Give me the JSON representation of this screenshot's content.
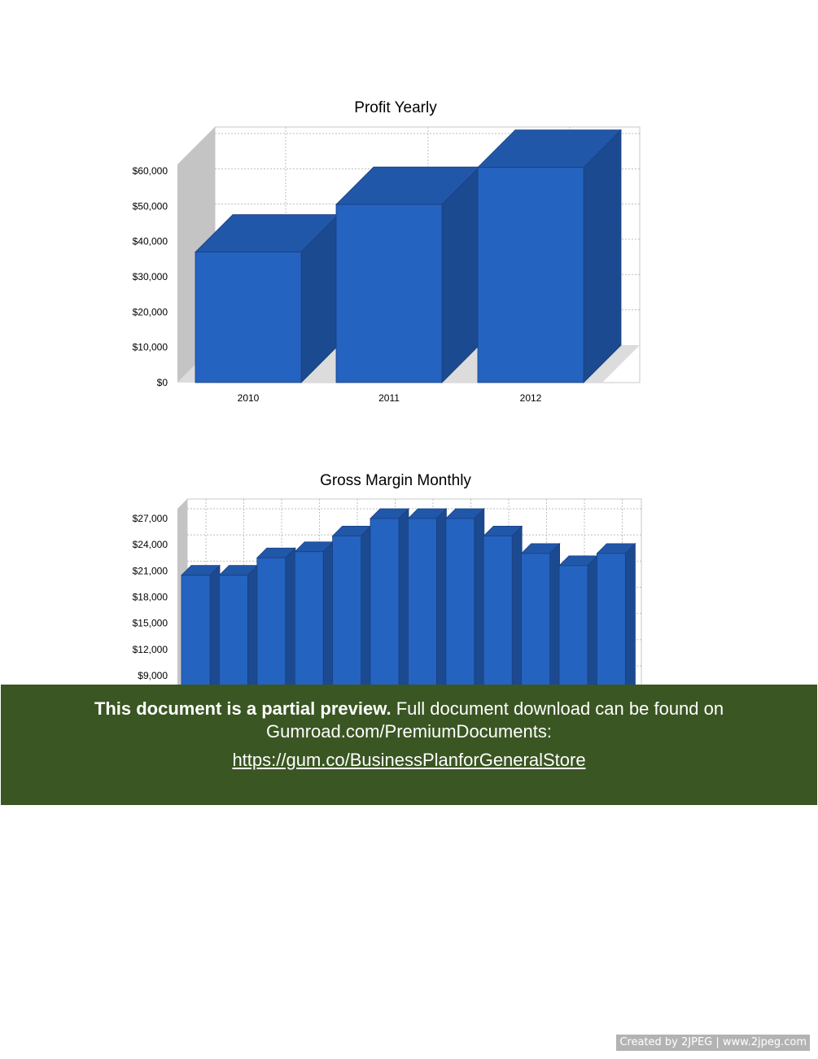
{
  "chart_data": [
    {
      "type": "bar",
      "title": "Profit Yearly",
      "categories": [
        "2010",
        "2011",
        "2012"
      ],
      "values": [
        37000,
        50500,
        61000
      ],
      "yticks": [
        "$0",
        "$10,000",
        "$20,000",
        "$30,000",
        "$40,000",
        "$50,000",
        "$60,000"
      ],
      "ylim": [
        0,
        60000
      ],
      "grid": true,
      "color": "#2563c0"
    },
    {
      "type": "bar",
      "title": "Gross Margin Monthly",
      "values": [
        20500,
        20500,
        22500,
        23200,
        25000,
        27000,
        27000,
        27000,
        25000,
        23000,
        21600,
        23000
      ],
      "yticks": [
        "$9,000",
        "$12,000",
        "$15,000",
        "$18,000",
        "$21,000",
        "$24,000",
        "$27,000"
      ],
      "ylim": [
        9000,
        27000
      ],
      "grid": true,
      "color": "#2563c0"
    }
  ],
  "banner": {
    "bold": "This document is a partial preview.",
    "text": " Full document download can be found on Gumroad.com/PremiumDocuments:",
    "link": "https://gum.co/BusinessPlanforGeneralStore"
  },
  "footer": "Created by 2JPEG | www.2jpeg.com"
}
